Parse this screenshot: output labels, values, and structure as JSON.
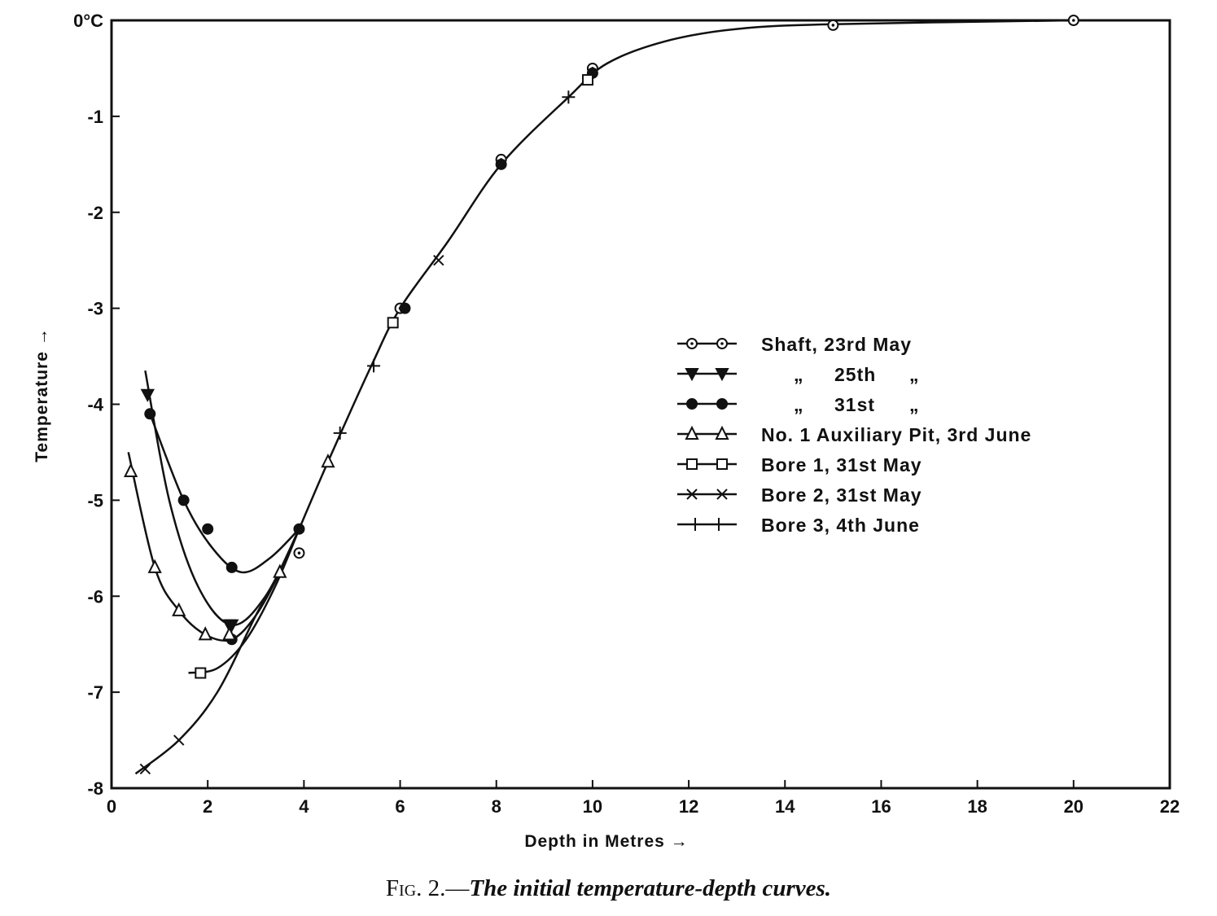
{
  "chart_data": {
    "type": "line",
    "caption_prefix": "Fig. 2.",
    "caption_dash": "—",
    "title": "The initial temperature-depth curves.",
    "xlabel": "Depth in Metres →",
    "ylabel": "Temperature →",
    "xlim": [
      0,
      22
    ],
    "ylim": [
      -8,
      0
    ],
    "x_ticks": [
      0,
      2,
      4,
      6,
      8,
      10,
      12,
      14,
      16,
      18,
      20,
      22
    ],
    "x_tick_labels": [
      "0",
      "2",
      "4",
      "6",
      "8",
      "10",
      "12",
      "14",
      "16",
      "18",
      "20",
      "22"
    ],
    "y_ticks": [
      0,
      -1,
      -2,
      -3,
      -4,
      -5,
      -6,
      -7,
      -8
    ],
    "y_tick_labels": [
      "0°C",
      "-1",
      "-2",
      "-3",
      "-4",
      "-5",
      "-6",
      "-7",
      "-8"
    ],
    "grid": false,
    "legend_position": "center-right",
    "main_curve": [
      {
        "x": 3.9,
        "y": -5.3
      },
      {
        "x": 4.5,
        "y": -4.6
      },
      {
        "x": 5.4,
        "y": -3.6
      },
      {
        "x": 6.0,
        "y": -3.0
      },
      {
        "x": 7.0,
        "y": -2.3
      },
      {
        "x": 8.1,
        "y": -1.5
      },
      {
        "x": 9.5,
        "y": -0.8
      },
      {
        "x": 10.3,
        "y": -0.45
      },
      {
        "x": 11.5,
        "y": -0.22
      },
      {
        "x": 13.0,
        "y": -0.09
      },
      {
        "x": 15.0,
        "y": -0.04
      },
      {
        "x": 20.0,
        "y": 0.0
      }
    ],
    "series": [
      {
        "name": "Shaft, 23rd May",
        "legend_line1": "Shaft, 23rd May",
        "legend_line2": "",
        "legend_line3": "",
        "marker": "open-circle-dot",
        "points": [
          {
            "x": 3.9,
            "y": -5.55
          },
          {
            "x": 6.0,
            "y": -3.0
          },
          {
            "x": 8.1,
            "y": -1.45
          },
          {
            "x": 10.0,
            "y": -0.5
          },
          {
            "x": 15.0,
            "y": -0.05
          },
          {
            "x": 20.0,
            "y": 0.0
          }
        ],
        "curve": []
      },
      {
        "name": "25th",
        "legend_line1": "„",
        "legend_line2": "25th",
        "legend_line3": "„",
        "marker": "filled-triangle-down",
        "points": [
          {
            "x": 0.75,
            "y": -3.9
          },
          {
            "x": 2.45,
            "y": -6.3
          },
          {
            "x": 2.5,
            "y": -6.3
          }
        ],
        "curve": [
          {
            "x": 0.7,
            "y": -3.65
          },
          {
            "x": 1.2,
            "y": -5.0
          },
          {
            "x": 1.8,
            "y": -5.9
          },
          {
            "x": 2.5,
            "y": -6.3
          },
          {
            "x": 3.2,
            "y": -6.0
          },
          {
            "x": 3.9,
            "y": -5.3
          }
        ]
      },
      {
        "name": "31st",
        "legend_line1": "„",
        "legend_line2": "31st",
        "legend_line3": "„",
        "marker": "filled-circle",
        "points": [
          {
            "x": 0.8,
            "y": -4.1
          },
          {
            "x": 1.5,
            "y": -5.0
          },
          {
            "x": 2.0,
            "y": -5.3
          },
          {
            "x": 2.5,
            "y": -5.7
          },
          {
            "x": 2.5,
            "y": -6.45
          },
          {
            "x": 3.9,
            "y": -5.3
          },
          {
            "x": 6.1,
            "y": -3.0
          },
          {
            "x": 8.1,
            "y": -1.5
          },
          {
            "x": 10.0,
            "y": -0.55
          }
        ],
        "curve": [
          {
            "x": 0.8,
            "y": -4.1
          },
          {
            "x": 1.5,
            "y": -5.0
          },
          {
            "x": 2.1,
            "y": -5.5
          },
          {
            "x": 2.7,
            "y": -5.75
          },
          {
            "x": 3.3,
            "y": -5.6
          },
          {
            "x": 3.9,
            "y": -5.3
          }
        ]
      },
      {
        "name": "No. 1 Auxiliary Pit, 3rd June",
        "legend_line1": "No. 1 Auxiliary Pit, 3rd June",
        "legend_line2": "",
        "legend_line3": "",
        "marker": "open-triangle-up",
        "points": [
          {
            "x": 0.4,
            "y": -4.7
          },
          {
            "x": 0.9,
            "y": -5.7
          },
          {
            "x": 1.4,
            "y": -6.15
          },
          {
            "x": 1.95,
            "y": -6.4
          },
          {
            "x": 2.45,
            "y": -6.4
          },
          {
            "x": 3.5,
            "y": -5.75
          },
          {
            "x": 4.5,
            "y": -4.6
          }
        ],
        "curve": [
          {
            "x": 0.35,
            "y": -4.5
          },
          {
            "x": 0.9,
            "y": -5.7
          },
          {
            "x": 1.4,
            "y": -6.15
          },
          {
            "x": 1.95,
            "y": -6.4
          },
          {
            "x": 2.5,
            "y": -6.45
          },
          {
            "x": 3.0,
            "y": -6.2
          },
          {
            "x": 3.5,
            "y": -5.75
          },
          {
            "x": 3.9,
            "y": -5.3
          }
        ]
      },
      {
        "name": "Bore 1, 31st May",
        "legend_line1": "Bore 1, 31st May",
        "legend_line2": "",
        "legend_line3": "",
        "marker": "open-square",
        "points": [
          {
            "x": 1.85,
            "y": -6.8
          },
          {
            "x": 5.85,
            "y": -3.15
          },
          {
            "x": 9.9,
            "y": -0.62
          }
        ],
        "curve": [
          {
            "x": 1.6,
            "y": -6.8
          },
          {
            "x": 2.2,
            "y": -6.75
          },
          {
            "x": 2.8,
            "y": -6.45
          },
          {
            "x": 3.4,
            "y": -5.9
          },
          {
            "x": 3.9,
            "y": -5.3
          }
        ]
      },
      {
        "name": "Bore 2, 31st May",
        "legend_line1": "Bore 2, 31st May",
        "legend_line2": "",
        "legend_line3": "",
        "marker": "x-cross",
        "points": [
          {
            "x": 0.7,
            "y": -7.8
          },
          {
            "x": 1.4,
            "y": -7.5
          },
          {
            "x": 6.8,
            "y": -2.5
          }
        ],
        "curve": [
          {
            "x": 0.5,
            "y": -7.85
          },
          {
            "x": 1.4,
            "y": -7.5
          },
          {
            "x": 2.2,
            "y": -7.0
          },
          {
            "x": 3.0,
            "y": -6.2
          },
          {
            "x": 3.5,
            "y": -5.75
          },
          {
            "x": 3.9,
            "y": -5.3
          }
        ]
      },
      {
        "name": "Bore 3, 4th June",
        "legend_line1": "Bore 3, 4th June",
        "legend_line2": "",
        "legend_line3": "",
        "marker": "plus",
        "points": [
          {
            "x": 4.75,
            "y": -4.3
          },
          {
            "x": 5.45,
            "y": -3.6
          },
          {
            "x": 9.5,
            "y": -0.8
          }
        ],
        "curve": []
      }
    ]
  }
}
